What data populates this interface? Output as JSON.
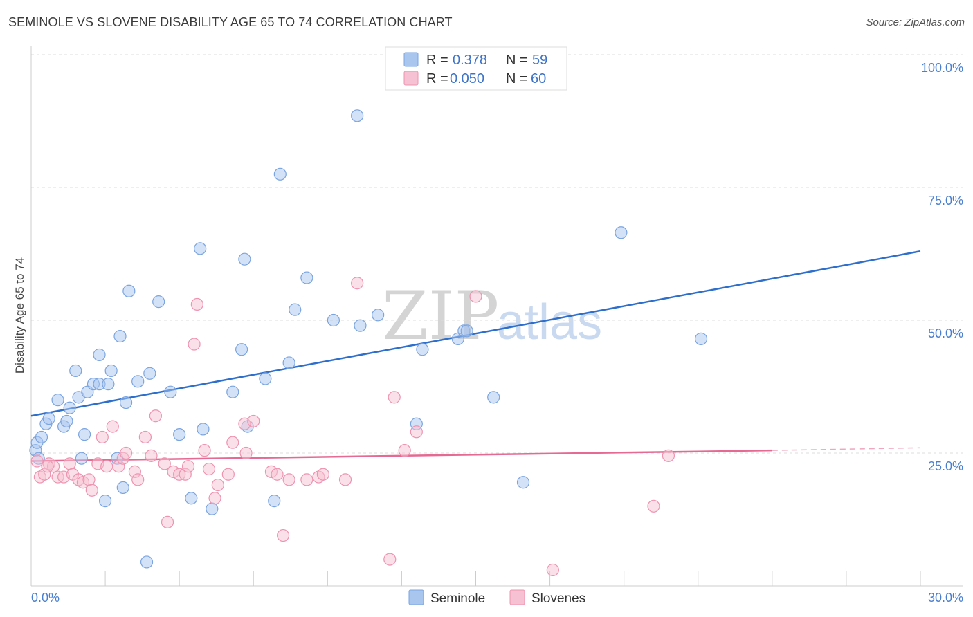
{
  "header": {
    "title": "SEMINOLE VS SLOVENE DISABILITY AGE 65 TO 74 CORRELATION CHART",
    "source": "Source: ZipAtlas.com"
  },
  "watermark": {
    "zip": "ZIP",
    "atlas": "atlas"
  },
  "legend": {
    "rows": [
      {
        "r_label": "R = ",
        "r_value": "0.378",
        "n_label": "N = ",
        "n_value": "59",
        "color": "#a9c6ef",
        "stroke": "#7aa4e0"
      },
      {
        "r_label": "R = ",
        "r_value": "0.050",
        "n_label": "N = ",
        "n_value": "60",
        "color": "#f6c1d2",
        "stroke": "#ee93b0"
      }
    ]
  },
  "bottom_legend": {
    "items": [
      "Seminole",
      "Slovenes"
    ]
  },
  "chart_data": {
    "type": "scatter",
    "title": "SEMINOLE VS SLOVENE DISABILITY AGE 65 TO 74 CORRELATION CHART",
    "xlabel": "",
    "ylabel": "Disability Age 65 to 74",
    "xlim": [
      0,
      30
    ],
    "ylim": [
      0,
      102
    ],
    "x_tick_labels": [
      {
        "value": 0,
        "label": "0.0%"
      },
      {
        "value": 30,
        "label": "30.0%"
      }
    ],
    "y_tick_labels": [
      {
        "value": 100,
        "label": "100.0%"
      },
      {
        "value": 75,
        "label": "75.0%"
      },
      {
        "value": 50,
        "label": "50.0%"
      },
      {
        "value": 25,
        "label": "25.0%"
      }
    ],
    "gridlines": [
      100,
      75,
      50,
      25
    ],
    "series": [
      {
        "name": "Seminole",
        "color": "#a9c6ef",
        "stroke": "#7aa4e0",
        "trend": {
          "x0": 0,
          "y0": 32,
          "x1": 30,
          "y1": 63,
          "color": "#2f6fcc",
          "dash_from": null
        },
        "points": [
          [
            0.15,
            25.5
          ],
          [
            0.2,
            27
          ],
          [
            0.35,
            28
          ],
          [
            0.5,
            30.5
          ],
          [
            0.6,
            31.5
          ],
          [
            0.9,
            35
          ],
          [
            1.1,
            30
          ],
          [
            1.2,
            31
          ],
          [
            1.3,
            33.5
          ],
          [
            1.5,
            40.5
          ],
          [
            1.6,
            35.5
          ],
          [
            1.7,
            24
          ],
          [
            1.8,
            28.5
          ],
          [
            1.9,
            36.5
          ],
          [
            2.1,
            38
          ],
          [
            2.3,
            38
          ],
          [
            2.3,
            43.5
          ],
          [
            2.5,
            16
          ],
          [
            2.6,
            38
          ],
          [
            2.7,
            40.5
          ],
          [
            2.9,
            24
          ],
          [
            3.0,
            47
          ],
          [
            3.1,
            18.5
          ],
          [
            3.2,
            34.5
          ],
          [
            3.3,
            55.5
          ],
          [
            3.6,
            38.5
          ],
          [
            3.9,
            4.5
          ],
          [
            4.0,
            40
          ],
          [
            4.3,
            53.5
          ],
          [
            4.7,
            36.5
          ],
          [
            5.0,
            28.5
          ],
          [
            5.4,
            16.5
          ],
          [
            5.7,
            63.5
          ],
          [
            5.8,
            29.5
          ],
          [
            6.1,
            14.5
          ],
          [
            6.8,
            36.5
          ],
          [
            7.1,
            44.5
          ],
          [
            7.2,
            61.5
          ],
          [
            7.3,
            30
          ],
          [
            7.9,
            39
          ],
          [
            8.2,
            16
          ],
          [
            8.4,
            77.5
          ],
          [
            8.7,
            42
          ],
          [
            8.9,
            52
          ],
          [
            9.3,
            58
          ],
          [
            10.2,
            50
          ],
          [
            11.0,
            88.5
          ],
          [
            11.1,
            49
          ],
          [
            11.7,
            51
          ],
          [
            13.0,
            30.5
          ],
          [
            13.2,
            44.5
          ],
          [
            14.4,
            46.5
          ],
          [
            14.6,
            48
          ],
          [
            14.7,
            48
          ],
          [
            15.6,
            35.5
          ],
          [
            16.6,
            19.5
          ],
          [
            19.9,
            66.5
          ],
          [
            22.6,
            46.5
          ],
          [
            0.25,
            24
          ]
        ]
      },
      {
        "name": "Slovenes",
        "color": "#f6c1d2",
        "stroke": "#ee93b0",
        "trend": {
          "x0": 0,
          "y0": 23.5,
          "x1": 25,
          "y1": 25.5,
          "dash_to": 30,
          "dash_y1": 26,
          "color": "#e46a93"
        },
        "points": [
          [
            0.2,
            23.5
          ],
          [
            0.3,
            20.5
          ],
          [
            0.45,
            21
          ],
          [
            0.6,
            23
          ],
          [
            0.75,
            22.5
          ],
          [
            0.9,
            20.5
          ],
          [
            1.1,
            20.5
          ],
          [
            1.3,
            23
          ],
          [
            1.4,
            21
          ],
          [
            1.6,
            20
          ],
          [
            1.75,
            19.5
          ],
          [
            1.95,
            20
          ],
          [
            2.05,
            18
          ],
          [
            2.25,
            23
          ],
          [
            2.4,
            28
          ],
          [
            2.55,
            22.5
          ],
          [
            2.75,
            30
          ],
          [
            2.95,
            22.5
          ],
          [
            3.1,
            24
          ],
          [
            3.2,
            25
          ],
          [
            3.5,
            21.5
          ],
          [
            3.6,
            20
          ],
          [
            3.85,
            28
          ],
          [
            4.05,
            24.5
          ],
          [
            4.2,
            32
          ],
          [
            4.5,
            23
          ],
          [
            4.6,
            12
          ],
          [
            4.8,
            21.5
          ],
          [
            5.0,
            21
          ],
          [
            5.2,
            21
          ],
          [
            5.3,
            22.5
          ],
          [
            5.6,
            53
          ],
          [
            5.5,
            45.5
          ],
          [
            5.85,
            25.5
          ],
          [
            6.0,
            22
          ],
          [
            6.2,
            16.5
          ],
          [
            6.3,
            19
          ],
          [
            6.65,
            21
          ],
          [
            6.8,
            27
          ],
          [
            7.2,
            30.5
          ],
          [
            7.25,
            25
          ],
          [
            7.5,
            31
          ],
          [
            8.1,
            21.5
          ],
          [
            8.3,
            21
          ],
          [
            8.5,
            9.5
          ],
          [
            8.7,
            20
          ],
          [
            9.3,
            20
          ],
          [
            9.7,
            20.5
          ],
          [
            9.85,
            21
          ],
          [
            10.6,
            20
          ],
          [
            11.0,
            57
          ],
          [
            12.1,
            5
          ],
          [
            12.25,
            35.5
          ],
          [
            12.6,
            25.5
          ],
          [
            13.0,
            29
          ],
          [
            15.0,
            54.5
          ],
          [
            17.6,
            3
          ],
          [
            21.0,
            15
          ],
          [
            21.5,
            24.5
          ],
          [
            0.55,
            22.5
          ]
        ]
      }
    ]
  }
}
